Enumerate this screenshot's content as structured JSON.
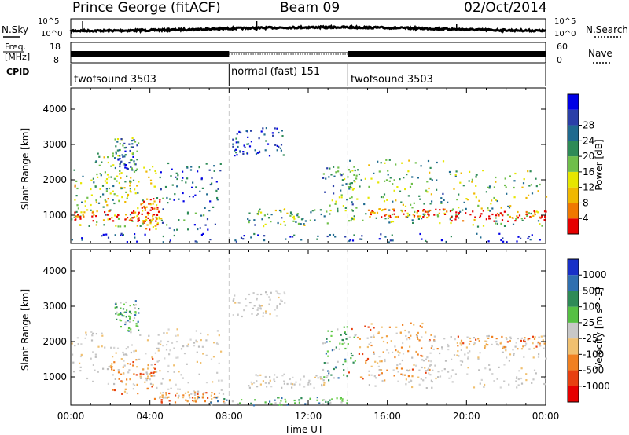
{
  "header": {
    "title": "Prince George (fitACF)",
    "beam": "Beam 09",
    "date": "02/Oct/2014"
  },
  "noise_panel": {
    "left_label": "N.Sky",
    "left_ticks": [
      "10^5",
      "10^0"
    ],
    "right_ticks": [
      "10^5",
      "10^0"
    ],
    "right_label": "N.Search"
  },
  "freq_panel": {
    "left_label_1": "Freq.",
    "left_label_2": "[MHz]",
    "left_ticks": [
      "18",
      "8"
    ],
    "right_ticks": [
      "60",
      "0"
    ],
    "right_label": "Nave"
  },
  "cpid_panel": {
    "label": "CPID",
    "segments": [
      {
        "name": "twofsound 3503",
        "start": 0,
        "end": 8
      },
      {
        "name": "normal (fast) 151",
        "start": 8,
        "end": 14
      },
      {
        "name": "twofsound 3503",
        "start": 14,
        "end": 24
      }
    ]
  },
  "time_axis": {
    "label": "Time UT",
    "ticks": [
      "00:00",
      "04:00",
      "08:00",
      "12:00",
      "16:00",
      "20:00",
      "00:00"
    ]
  },
  "chart_data": [
    {
      "type": "heatmap",
      "name": "power",
      "ylabel": "Slant Range [km]",
      "yticks": [
        "1000",
        "2000",
        "3000",
        "4000"
      ],
      "xlim": [
        0,
        24
      ],
      "ylim": [
        200,
        4600
      ],
      "colorbar": {
        "label": "Power [dB]",
        "ticks": [
          "4",
          "8",
          "12",
          "16",
          "20",
          "24",
          "28"
        ],
        "colors": [
          "#0000e6",
          "#2a3fa8",
          "#1f6a8f",
          "#2e8b57",
          "#6fbf4a",
          "#e6e600",
          "#f0b800",
          "#f07800",
          "#e60000"
        ]
      },
      "scatter_regions": [
        {
          "t0": 0.0,
          "t1": 4.4,
          "r0": 700,
          "r1": 2400,
          "level": 0.55
        },
        {
          "t0": 0.0,
          "t1": 4.6,
          "r0": 850,
          "r1": 1150,
          "level": 0.95
        },
        {
          "t0": 1.0,
          "t1": 3.2,
          "r0": 1400,
          "r1": 2800,
          "level": 0.45
        },
        {
          "t0": 2.2,
          "t1": 3.4,
          "r0": 2300,
          "r1": 3200,
          "level": 0.3
        },
        {
          "t0": 3.5,
          "t1": 4.5,
          "r0": 600,
          "r1": 1500,
          "level": 0.8
        },
        {
          "t0": 4.4,
          "t1": 7.6,
          "r0": 600,
          "r1": 2500,
          "level": 0.2
        },
        {
          "t0": 8.1,
          "t1": 10.8,
          "r0": 2700,
          "r1": 3500,
          "level": 0.12
        },
        {
          "t0": 8.8,
          "t1": 13.0,
          "r0": 700,
          "r1": 1200,
          "level": 0.45
        },
        {
          "t0": 12.7,
          "t1": 14.4,
          "r0": 900,
          "r1": 2400,
          "level": 0.4
        },
        {
          "t0": 14.0,
          "t1": 19.0,
          "r0": 800,
          "r1": 2600,
          "level": 0.45
        },
        {
          "t0": 15.0,
          "t1": 19.0,
          "r0": 950,
          "r1": 1200,
          "level": 0.9
        },
        {
          "t0": 19.1,
          "t1": 24.0,
          "r0": 700,
          "r1": 2300,
          "level": 0.5
        },
        {
          "t0": 19.1,
          "t1": 24.0,
          "r0": 850,
          "r1": 1150,
          "level": 1.0
        },
        {
          "t0": 0.0,
          "t1": 24.0,
          "r0": 250,
          "r1": 500,
          "level": 0.15
        }
      ]
    },
    {
      "type": "heatmap",
      "name": "velocity",
      "ylabel": "Slant Range [km]",
      "yticks": [
        "1000",
        "2000",
        "3000",
        "4000"
      ],
      "xlim": [
        0,
        24
      ],
      "ylim": [
        200,
        4600
      ],
      "colorbar": {
        "label": "Velocity [m s^-1]",
        "ticks": [
          "1000",
          "500",
          "100",
          "25",
          "-25",
          "-100",
          "-500",
          "-1000"
        ],
        "colors": [
          "#1830c8",
          "#2f6fb0",
          "#2e8b57",
          "#55c043",
          "#c8c8c8",
          "#f0c070",
          "#f08020",
          "#e84010",
          "#e60000"
        ]
      },
      "scatter_regions": [
        {
          "t0": 0.0,
          "t1": 4.4,
          "r0": 800,
          "r1": 2300,
          "kind": "gray"
        },
        {
          "t0": 2.0,
          "t1": 4.4,
          "r0": 500,
          "r1": 1600,
          "kind": "orange"
        },
        {
          "t0": 2.2,
          "t1": 3.4,
          "r0": 2300,
          "r1": 3200,
          "kind": "green"
        },
        {
          "t0": 4.4,
          "t1": 7.6,
          "r0": 400,
          "r1": 2400,
          "kind": "gray"
        },
        {
          "t0": 4.2,
          "t1": 7.8,
          "r0": 300,
          "r1": 600,
          "kind": "orange"
        },
        {
          "t0": 8.1,
          "t1": 10.8,
          "r0": 2700,
          "r1": 3500,
          "kind": "gray"
        },
        {
          "t0": 8.8,
          "t1": 13.0,
          "r0": 700,
          "r1": 1100,
          "kind": "gray"
        },
        {
          "t0": 6.0,
          "t1": 14.0,
          "r0": 200,
          "r1": 450,
          "kind": "green"
        },
        {
          "t0": 12.7,
          "t1": 14.4,
          "r0": 900,
          "r1": 2500,
          "kind": "green"
        },
        {
          "t0": 14.0,
          "t1": 18.5,
          "r0": 900,
          "r1": 2600,
          "kind": "orange"
        },
        {
          "t0": 15.0,
          "t1": 24.0,
          "r0": 700,
          "r1": 2200,
          "kind": "gray"
        },
        {
          "t0": 19.5,
          "t1": 24.0,
          "r0": 1800,
          "r1": 2200,
          "kind": "orange"
        }
      ]
    }
  ]
}
